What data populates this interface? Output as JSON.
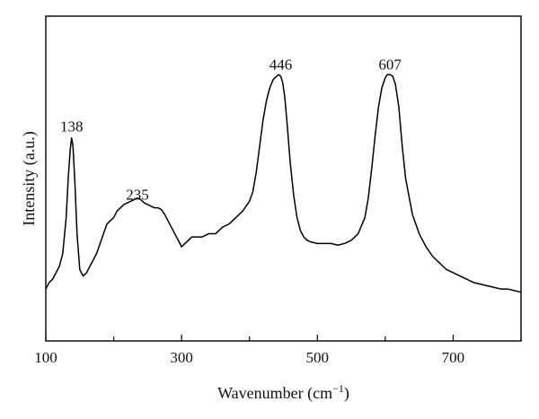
{
  "chart_data": {
    "type": "line",
    "title": "",
    "xlabel": "Wavenumber (cm",
    "xlabel_sup": "−1",
    "xlabel_close": ")",
    "ylabel": "Intensity (a.u.)",
    "xlim": [
      100,
      800
    ],
    "ylim": [
      0,
      1
    ],
    "x_ticks": [
      100,
      300,
      500,
      700
    ],
    "x_tick_labels": [
      "100",
      "300",
      "500",
      "700"
    ],
    "y_ticks_visible": false,
    "grid": false,
    "legend": "none",
    "line_color": "#000000",
    "annotations": [
      {
        "text": "138",
        "x": 138,
        "y": 0.645
      },
      {
        "text": "235",
        "x": 235,
        "y": 0.435
      },
      {
        "text": "446",
        "x": 446,
        "y": 0.835
      },
      {
        "text": "607",
        "x": 607,
        "y": 0.835
      }
    ],
    "series": [
      {
        "x": [
          100,
          105,
          110,
          115,
          120,
          125,
          130,
          133,
          136,
          138,
          140,
          143,
          146,
          150,
          155,
          160,
          165,
          170,
          175,
          180,
          185,
          190,
          195,
          200,
          205,
          210,
          215,
          220,
          225,
          230,
          235,
          240,
          245,
          250,
          255,
          260,
          265,
          270,
          275,
          280,
          285,
          290,
          295,
          300,
          305,
          310,
          315,
          320,
          330,
          340,
          350,
          360,
          370,
          380,
          390,
          400,
          405,
          410,
          415,
          420,
          425,
          430,
          435,
          440,
          443,
          446,
          449,
          452,
          455,
          460,
          465,
          470,
          475,
          480,
          485,
          490,
          500,
          510,
          520,
          530,
          540,
          550,
          560,
          570,
          575,
          580,
          585,
          590,
          595,
          600,
          603,
          607,
          611,
          615,
          620,
          625,
          630,
          640,
          650,
          660,
          670,
          680,
          690,
          700,
          710,
          720,
          730,
          740,
          750,
          760,
          770,
          780,
          790,
          800
        ],
        "y": [
          0.16,
          0.18,
          0.19,
          0.21,
          0.23,
          0.27,
          0.38,
          0.5,
          0.59,
          0.625,
          0.6,
          0.48,
          0.33,
          0.22,
          0.2,
          0.21,
          0.23,
          0.25,
          0.27,
          0.3,
          0.33,
          0.36,
          0.37,
          0.38,
          0.4,
          0.41,
          0.42,
          0.425,
          0.43,
          0.435,
          0.44,
          0.435,
          0.425,
          0.42,
          0.415,
          0.41,
          0.41,
          0.405,
          0.39,
          0.37,
          0.35,
          0.33,
          0.31,
          0.29,
          0.3,
          0.31,
          0.32,
          0.32,
          0.32,
          0.33,
          0.33,
          0.35,
          0.36,
          0.38,
          0.4,
          0.43,
          0.46,
          0.52,
          0.6,
          0.68,
          0.74,
          0.78,
          0.805,
          0.815,
          0.82,
          0.815,
          0.795,
          0.75,
          0.68,
          0.55,
          0.45,
          0.38,
          0.34,
          0.32,
          0.31,
          0.305,
          0.3,
          0.3,
          0.3,
          0.295,
          0.3,
          0.31,
          0.33,
          0.38,
          0.44,
          0.53,
          0.63,
          0.72,
          0.78,
          0.81,
          0.82,
          0.82,
          0.815,
          0.79,
          0.72,
          0.6,
          0.5,
          0.39,
          0.33,
          0.29,
          0.26,
          0.24,
          0.22,
          0.21,
          0.2,
          0.19,
          0.18,
          0.175,
          0.17,
          0.165,
          0.16,
          0.16,
          0.155,
          0.15
        ]
      }
    ]
  }
}
